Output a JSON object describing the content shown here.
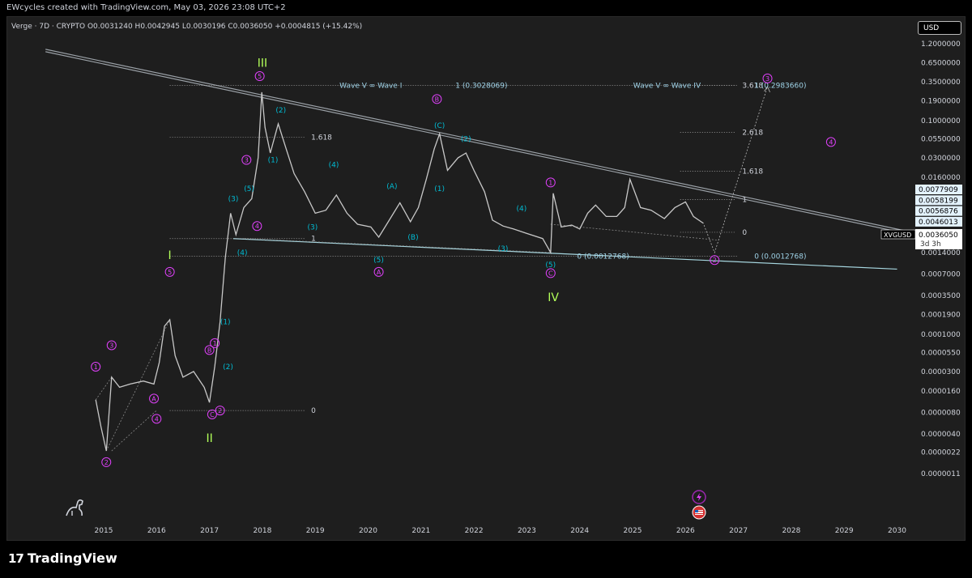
{
  "header": {
    "credit": "EWcycles created with TradingView.com, May 03, 2026 23:08 UTC+2",
    "legend": "Verge · 7D · CRYPTO  O0.0031240  H0.0042945  L0.0030196  C0.0036050  +0.0004815 (+15.42%)",
    "currency_button": "USD"
  },
  "footer": {
    "brand": "TradingView",
    "logo_mark": "17"
  },
  "colors": {
    "background": "#1e1e1e",
    "price": "#c8c8c8",
    "cyan": "#00bcd4",
    "magenta": "#e040fb",
    "green": "#b2ff59",
    "channel": "#9aa0a6",
    "fib": "#b9b9b9"
  },
  "chart_data": {
    "type": "line",
    "symbol": "XVGUSD",
    "timeframe": "7D",
    "y_scale": "log",
    "x_ticks": [
      "2015",
      "2016",
      "2017",
      "2018",
      "2019",
      "2020",
      "2021",
      "2022",
      "2023",
      "2024",
      "2025",
      "2026",
      "2027",
      "2028",
      "2029",
      "2030"
    ],
    "y_ticks": [
      "1.2000000",
      "0.6500000",
      "0.3500000",
      "0.1900000",
      "0.1000000",
      "0.0550000",
      "0.0300000",
      "0.0160000",
      "0.0014000",
      "0.0007000",
      "0.0003500",
      "0.0001900",
      "0.0001000",
      "0.0000550",
      "0.0000300",
      "0.0000160",
      "0.0000080",
      "0.0000040",
      "0.0000022",
      "0.0000011"
    ],
    "price_badges": [
      {
        "label": "0.0077909",
        "value": 0.0077909
      },
      {
        "label": "0.0058199",
        "value": 0.0058199
      },
      {
        "label": "0.0056876",
        "value": 0.0056876
      },
      {
        "label": "0.0046013",
        "value": 0.0046013
      }
    ],
    "last_price": {
      "symbol": "XVGUSD",
      "value": "0.0036050",
      "countdown": "3d 3h"
    },
    "price_series": [
      {
        "date": 2014.85,
        "price": 1.2e-05
      },
      {
        "date": 2014.95,
        "price": 5e-06
      },
      {
        "date": 2015.05,
        "price": 2.3e-06
      },
      {
        "date": 2015.15,
        "price": 2.5e-05
      },
      {
        "date": 2015.3,
        "price": 1.8e-05
      },
      {
        "date": 2015.5,
        "price": 2e-05
      },
      {
        "date": 2015.75,
        "price": 2.2e-05
      },
      {
        "date": 2015.95,
        "price": 2e-05
      },
      {
        "date": 2016.05,
        "price": 4e-05
      },
      {
        "date": 2016.15,
        "price": 0.00013
      },
      {
        "date": 2016.25,
        "price": 0.00016
      },
      {
        "date": 2016.35,
        "price": 5e-05
      },
      {
        "date": 2016.5,
        "price": 2.5e-05
      },
      {
        "date": 2016.7,
        "price": 3e-05
      },
      {
        "date": 2016.9,
        "price": 1.8e-05
      },
      {
        "date": 2017.0,
        "price": 1.1e-05
      },
      {
        "date": 2017.1,
        "price": 3.5e-05
      },
      {
        "date": 2017.2,
        "price": 0.00015
      },
      {
        "date": 2017.3,
        "price": 0.0012
      },
      {
        "date": 2017.4,
        "price": 0.005
      },
      {
        "date": 2017.5,
        "price": 0.0025
      },
      {
        "date": 2017.65,
        "price": 0.006
      },
      {
        "date": 2017.8,
        "price": 0.008
      },
      {
        "date": 2017.92,
        "price": 0.03
      },
      {
        "date": 2017.99,
        "price": 0.25
      },
      {
        "date": 2018.05,
        "price": 0.08
      },
      {
        "date": 2018.15,
        "price": 0.035
      },
      {
        "date": 2018.3,
        "price": 0.09
      },
      {
        "date": 2018.45,
        "price": 0.04
      },
      {
        "date": 2018.6,
        "price": 0.018
      },
      {
        "date": 2018.8,
        "price": 0.01
      },
      {
        "date": 2019.0,
        "price": 0.005
      },
      {
        "date": 2019.2,
        "price": 0.0055
      },
      {
        "date": 2019.4,
        "price": 0.009
      },
      {
        "date": 2019.6,
        "price": 0.005
      },
      {
        "date": 2019.8,
        "price": 0.0035
      },
      {
        "date": 2020.05,
        "price": 0.0032
      },
      {
        "date": 2020.2,
        "price": 0.0023
      },
      {
        "date": 2020.4,
        "price": 0.004
      },
      {
        "date": 2020.6,
        "price": 0.007
      },
      {
        "date": 2020.8,
        "price": 0.0038
      },
      {
        "date": 2020.95,
        "price": 0.006
      },
      {
        "date": 2021.1,
        "price": 0.015
      },
      {
        "date": 2021.25,
        "price": 0.04
      },
      {
        "date": 2021.35,
        "price": 0.065
      },
      {
        "date": 2021.5,
        "price": 0.02
      },
      {
        "date": 2021.7,
        "price": 0.03
      },
      {
        "date": 2021.85,
        "price": 0.035
      },
      {
        "date": 2022.0,
        "price": 0.02
      },
      {
        "date": 2022.2,
        "price": 0.01
      },
      {
        "date": 2022.35,
        "price": 0.004
      },
      {
        "date": 2022.55,
        "price": 0.0033
      },
      {
        "date": 2022.75,
        "price": 0.003
      },
      {
        "date": 2023.0,
        "price": 0.0026
      },
      {
        "date": 2023.3,
        "price": 0.0022
      },
      {
        "date": 2023.45,
        "price": 0.0014
      },
      {
        "date": 2023.5,
        "price": 0.0095
      },
      {
        "date": 2023.65,
        "price": 0.0032
      },
      {
        "date": 2023.85,
        "price": 0.0034
      },
      {
        "date": 2024.0,
        "price": 0.003
      },
      {
        "date": 2024.15,
        "price": 0.005
      },
      {
        "date": 2024.3,
        "price": 0.0065
      },
      {
        "date": 2024.5,
        "price": 0.0045
      },
      {
        "date": 2024.7,
        "price": 0.0045
      },
      {
        "date": 2024.85,
        "price": 0.006
      },
      {
        "date": 2024.95,
        "price": 0.015
      },
      {
        "date": 2025.15,
        "price": 0.006
      },
      {
        "date": 2025.35,
        "price": 0.0055
      },
      {
        "date": 2025.6,
        "price": 0.0042
      },
      {
        "date": 2025.8,
        "price": 0.006
      },
      {
        "date": 2026.0,
        "price": 0.0072
      },
      {
        "date": 2026.15,
        "price": 0.0045
      },
      {
        "date": 2026.34,
        "price": 0.0036
      }
    ],
    "fib_levels": [
      {
        "label": "1.618",
        "date0": 2016.25,
        "date1": 2018.8,
        "price": 0.058
      },
      {
        "label": "1",
        "date0": 2016.25,
        "date1": 2018.8,
        "price": 0.0022
      },
      {
        "label": "0",
        "date0": 2016.25,
        "date1": 2018.8,
        "price": 8.5e-06
      },
      {
        "label": "3.618",
        "date0": 2025.9,
        "date1": 2026.95,
        "price": 0.31
      },
      {
        "label": "2.618",
        "date0": 2025.9,
        "date1": 2026.95,
        "price": 0.068
      },
      {
        "label": "1.618",
        "date0": 2025.9,
        "date1": 2026.95,
        "price": 0.0195
      },
      {
        "label": "1",
        "date0": 2025.9,
        "date1": 2026.95,
        "price": 0.0078
      },
      {
        "label": "0",
        "date0": 2025.9,
        "date1": 2026.95,
        "price": 0.0027
      }
    ],
    "annotations": [
      {
        "text": "Wave V = Wave I",
        "date": 2020.05,
        "price": 0.31
      },
      {
        "text": "1 (0.3028069)",
        "date": 2021.65,
        "price": 0.31
      },
      {
        "text": "Wave V = Wave IV",
        "date": 2025.65,
        "price": 0.31
      },
      {
        "text": "1 (0.2983660)",
        "date": 2027.3,
        "price": 0.31
      },
      {
        "text": "0 (0.0012768)",
        "date": 2023.95,
        "price": 0.00125
      },
      {
        "text": "0 (0.0012768)",
        "date": 2027.3,
        "price": 0.00125
      }
    ],
    "wave_labels": [
      {
        "text": "I",
        "color": "green",
        "date": 2016.25,
        "price": 0.0013
      },
      {
        "text": "II",
        "color": "green",
        "date": 2017.0,
        "price": 3.5e-06
      },
      {
        "text": "III",
        "color": "green",
        "date": 2018.0,
        "price": 0.65
      },
      {
        "text": "IV",
        "color": "green",
        "date": 2023.5,
        "price": 0.00033
      },
      {
        "text": "(1)",
        "color": "cyan",
        "date": 2017.3,
        "price": 0.00015
      },
      {
        "text": "(2)",
        "color": "cyan",
        "date": 2017.35,
        "price": 3.5e-05
      },
      {
        "text": "(3)",
        "color": "cyan",
        "date": 2017.45,
        "price": 0.008
      },
      {
        "text": "(4)",
        "color": "cyan",
        "date": 2017.62,
        "price": 0.0014
      },
      {
        "text": "(5)",
        "color": "cyan",
        "date": 2017.75,
        "price": 0.011
      },
      {
        "text": "(1)",
        "color": "cyan",
        "date": 2018.2,
        "price": 0.028
      },
      {
        "text": "(2)",
        "color": "cyan",
        "date": 2018.35,
        "price": 0.14
      },
      {
        "text": "(3)",
        "color": "cyan",
        "date": 2018.95,
        "price": 0.0032
      },
      {
        "text": "(4)",
        "color": "cyan",
        "date": 2019.35,
        "price": 0.024
      },
      {
        "text": "(5)",
        "color": "cyan",
        "date": 2020.2,
        "price": 0.0011
      },
      {
        "text": "(A)",
        "color": "cyan",
        "date": 2020.45,
        "price": 0.012
      },
      {
        "text": "(B)",
        "color": "cyan",
        "date": 2020.85,
        "price": 0.0023
      },
      {
        "text": "(C)",
        "color": "cyan",
        "date": 2021.35,
        "price": 0.085
      },
      {
        "text": "(1)",
        "color": "cyan",
        "date": 2021.35,
        "price": 0.011
      },
      {
        "text": "(2)",
        "color": "cyan",
        "date": 2021.85,
        "price": 0.055
      },
      {
        "text": "(3)",
        "color": "cyan",
        "date": 2022.55,
        "price": 0.0016
      },
      {
        "text": "(4)",
        "color": "cyan",
        "date": 2022.9,
        "price": 0.0058
      },
      {
        "text": "(5)",
        "color": "cyan",
        "date": 2023.45,
        "price": 0.00095
      },
      {
        "text": "1",
        "color": "magenta",
        "date": 2014.85,
        "price": 3.5e-05
      },
      {
        "text": "2",
        "color": "magenta",
        "date": 2015.05,
        "price": 1.6e-06
      },
      {
        "text": "3",
        "color": "magenta",
        "date": 2015.15,
        "price": 7e-05
      },
      {
        "text": "4",
        "color": "magenta",
        "date": 2016.0,
        "price": 6.5e-06
      },
      {
        "text": "5",
        "color": "magenta",
        "date": 2016.25,
        "price": 0.00075
      },
      {
        "text": "A",
        "color": "magenta",
        "date": 2015.95,
        "price": 1.25e-05
      },
      {
        "text": "B",
        "color": "magenta",
        "date": 2017.0,
        "price": 6e-05
      },
      {
        "text": "C",
        "color": "magenta",
        "date": 2017.05,
        "price": 7.5e-06
      },
      {
        "text": "1",
        "color": "magenta",
        "date": 2017.1,
        "price": 7.5e-05
      },
      {
        "text": "2",
        "color": "magenta",
        "date": 2017.2,
        "price": 8.5e-06
      },
      {
        "text": "3",
        "color": "magenta",
        "date": 2017.7,
        "price": 0.028
      },
      {
        "text": "4",
        "color": "magenta",
        "date": 2017.9,
        "price": 0.0033
      },
      {
        "text": "5",
        "color": "magenta",
        "date": 2017.95,
        "price": 0.42
      },
      {
        "text": "A",
        "color": "magenta",
        "date": 2020.2,
        "price": 0.00075
      },
      {
        "text": "B",
        "color": "magenta",
        "date": 2021.3,
        "price": 0.2
      },
      {
        "text": "C",
        "color": "magenta",
        "date": 2023.45,
        "price": 0.00072
      },
      {
        "text": "1",
        "color": "magenta",
        "date": 2023.45,
        "price": 0.0135
      },
      {
        "text": "2",
        "color": "magenta",
        "date": 2026.55,
        "price": 0.0011
      },
      {
        "text": "3",
        "color": "magenta",
        "date": 2027.55,
        "price": 0.39
      },
      {
        "text": "4",
        "color": "magenta",
        "date": 2028.75,
        "price": 0.05
      }
    ],
    "channel": {
      "upper": [
        {
          "date": 2013.9,
          "price": 1.0
        },
        {
          "date": 2030.5,
          "price": 0.0025
        }
      ],
      "lower": [
        {
          "date": 2017.45,
          "price": 0.0022
        },
        {
          "date": 2030.0,
          "price": 0.00082
        }
      ]
    },
    "projection": [
      {
        "date": 2026.35,
        "price": 0.0034
      },
      {
        "date": 2026.55,
        "price": 0.0014
      },
      {
        "date": 2027.55,
        "price": 0.3
      }
    ],
    "guides": [
      {
        "points": [
          {
            "date": 2014.85,
            "price": 1.2e-05
          },
          {
            "date": 2015.15,
            "price": 2.5e-05
          }
        ]
      },
      {
        "points": [
          {
            "date": 2015.05,
            "price": 2.3e-06
          },
          {
            "date": 2016.25,
            "price": 0.00016
          }
        ]
      },
      {
        "points": [
          {
            "date": 2015.15,
            "price": 2.3e-06
          },
          {
            "date": 2016.0,
            "price": 8.5e-06
          }
        ]
      },
      {
        "points": [
          {
            "date": 2017.65,
            "price": 0.0022
          },
          {
            "date": 2023.45,
            "price": 0.0014
          }
        ]
      },
      {
        "points": [
          {
            "date": 2023.45,
            "price": 0.0035
          },
          {
            "date": 2026.6,
            "price": 0.0021
          }
        ]
      }
    ]
  }
}
